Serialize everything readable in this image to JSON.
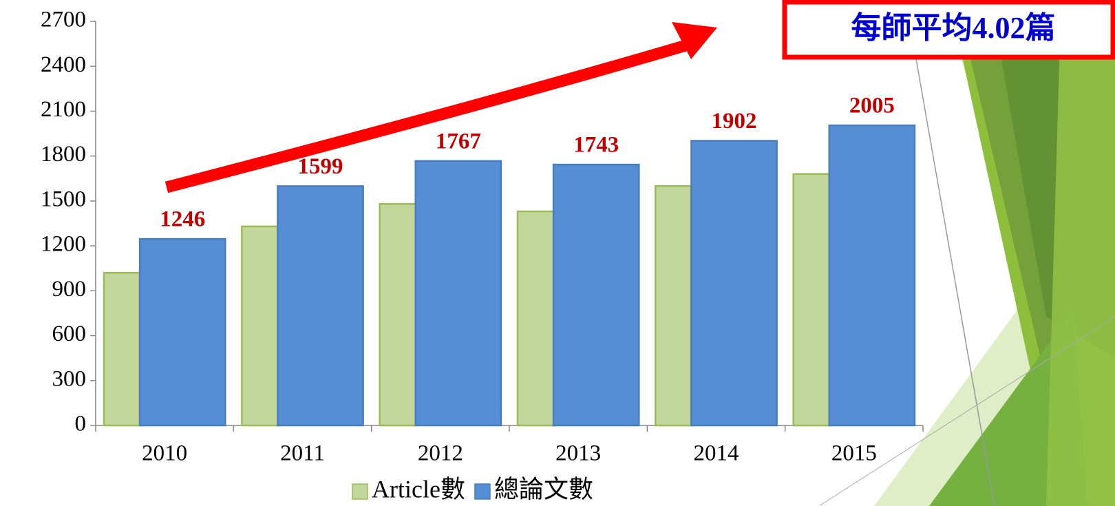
{
  "chart_data": {
    "type": "bar",
    "annotation": "每師平均4.02篇",
    "categories": [
      "2010",
      "2011",
      "2012",
      "2013",
      "2014",
      "2015"
    ],
    "series": [
      {
        "name": "Article數",
        "color": "#c3d69b",
        "border": "#9bbb59",
        "values": [
          1020,
          1330,
          1480,
          1430,
          1600,
          1680
        ]
      },
      {
        "name": "總論文數",
        "color": "#558ed5",
        "border": "#4a7ebb",
        "values": [
          1246,
          1599,
          1767,
          1743,
          1902,
          2005
        ],
        "data_labels": true,
        "label_color": "#c00000"
      }
    ],
    "ylim": [
      0,
      2700
    ],
    "yticks": [
      0,
      300,
      600,
      900,
      1200,
      1500,
      1800,
      2100,
      2400,
      2700
    ],
    "legend": "bottom"
  }
}
